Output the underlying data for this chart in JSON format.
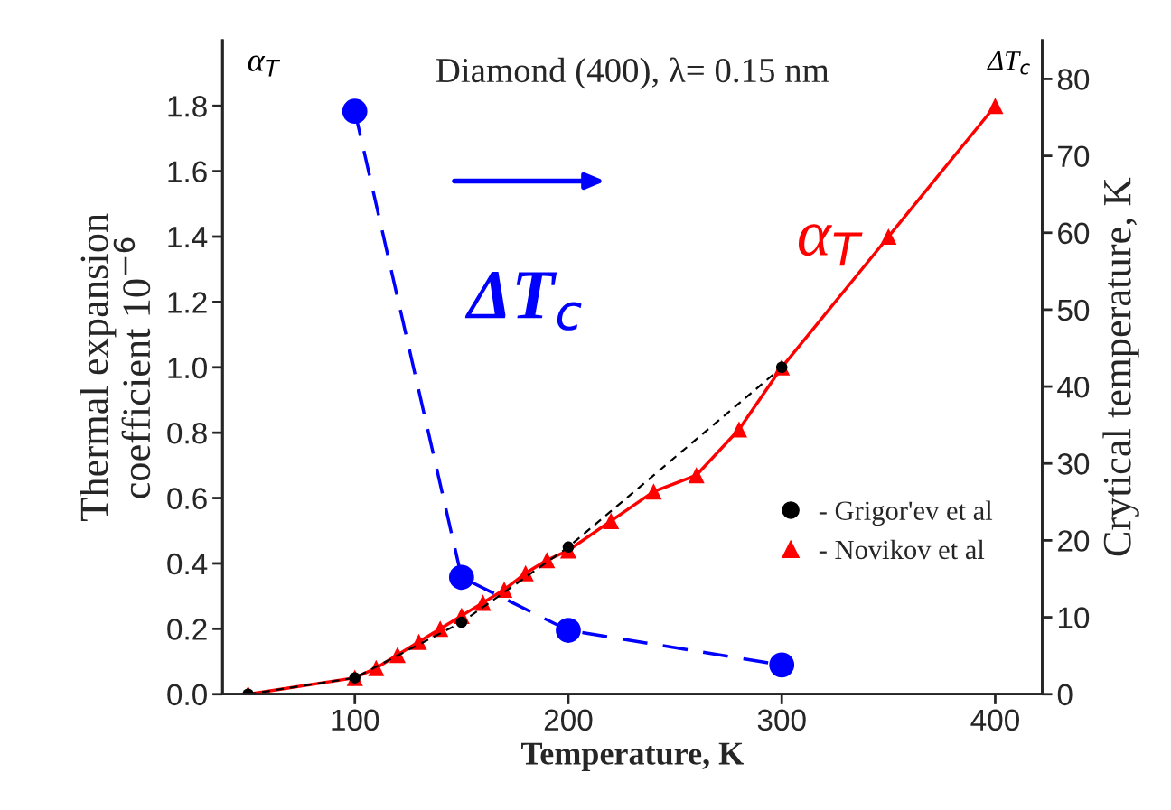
{
  "chart_data": {
    "type": "line",
    "title": "Diamond (400), λ= 0.15 nm",
    "xlabel": "Temperature, K",
    "ylabel": "Thermal expansion\ncoefficient 10$^{−6}$",
    "y2label": "Crytical temperature, K",
    "annotations": [
      "α$_{T}$",
      "ΔT$_{c}$",
      "ΔT$_{c}$",
      "α$_{T}$"
    ],
    "series": [
      {
        "name": "- Grigor'ev et al",
        "color": "#000000",
        "marker": "circle",
        "line_style": "dashed",
        "x": [
          50,
          100,
          150,
          200,
          300
        ],
        "values": [
          0.0,
          0.05,
          0.22,
          0.45,
          1.0
        ]
      },
      {
        "name": "- Novikov et al",
        "color": "#ff0000",
        "marker": "triangle",
        "line_style": "solid",
        "x": [
          50,
          100,
          110,
          120,
          130,
          140,
          150,
          160,
          170,
          180,
          190,
          200,
          220,
          240,
          260,
          280,
          300,
          350,
          400
        ],
        "values": [
          0.0,
          0.05,
          0.08,
          0.12,
          0.16,
          0.2,
          0.24,
          0.28,
          0.32,
          0.37,
          0.41,
          0.44,
          0.53,
          0.62,
          0.67,
          0.81,
          1.0,
          1.4,
          1.8
        ]
      },
      {
        "color": "#0000ff",
        "marker": "circle",
        "line_style": "dashed",
        "axis": "y2",
        "x": [
          100,
          150,
          200,
          300
        ],
        "values": [
          75.8,
          15.2,
          8.3,
          3.8
        ]
      }
    ],
    "xlim": [
      38,
      422
    ],
    "xticks": [
      100,
      200,
      300,
      400
    ],
    "ylim": [
      0,
      2.0
    ],
    "yticks": [
      {
        "value": 0,
        "label": "0.0"
      },
      {
        "value": 0.2,
        "label": "0.2"
      },
      {
        "value": 0.4,
        "label": "0.4"
      },
      {
        "value": 0.6,
        "label": "0.6"
      },
      {
        "value": 0.8,
        "label": "0.8"
      },
      {
        "value": 1.0,
        "label": "1.0"
      },
      {
        "value": 1.2,
        "label": "1.2"
      },
      {
        "value": 1.4,
        "label": "1.4"
      },
      {
        "value": 1.6,
        "label": "1.6"
      },
      {
        "value": 1.8,
        "label": "1.8"
      }
    ],
    "y2lim": [
      0,
      85
    ],
    "y2ticks": [
      0,
      10,
      20,
      30,
      40,
      50,
      60,
      70,
      80
    ],
    "grid": false,
    "legend": "bottom right"
  }
}
